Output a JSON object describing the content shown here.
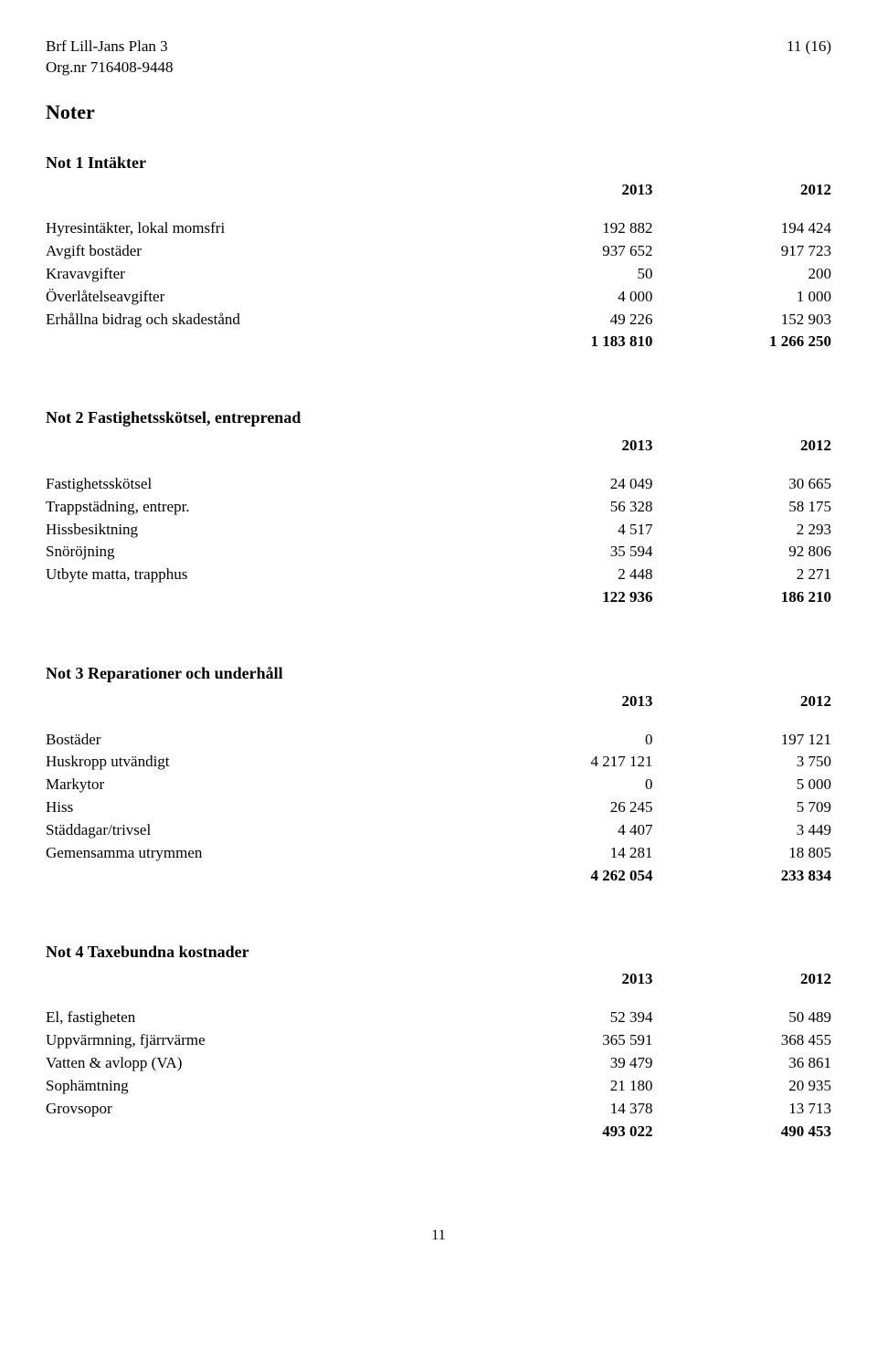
{
  "header": {
    "org_name": "Brf Lill-Jans Plan 3",
    "page_num": "11 (16)",
    "org_nr": "Org.nr 716408-9448"
  },
  "noter_title": "Noter",
  "sections": [
    {
      "title": "Not 1 Intäkter",
      "years": [
        "2013",
        "2012"
      ],
      "rows": [
        {
          "label": "Hyresintäkter, lokal momsfri",
          "c1": "192 882",
          "c2": "194 424"
        },
        {
          "label": "Avgift bostäder",
          "c1": "937 652",
          "c2": "917 723"
        },
        {
          "label": "Kravavgifter",
          "c1": "50",
          "c2": "200"
        },
        {
          "label": "Överlåtelseavgifter",
          "c1": "4 000",
          "c2": "1 000"
        },
        {
          "label": "Erhållna bidrag och skadestånd",
          "c1": "49 226",
          "c2": "152 903"
        }
      ],
      "total": {
        "label": "",
        "c1": "1 183 810",
        "c2": "1 266 250"
      }
    },
    {
      "title": "Not 2 Fastighetsskötsel, entreprenad",
      "years": [
        "2013",
        "2012"
      ],
      "rows": [
        {
          "label": "Fastighetsskötsel",
          "c1": "24 049",
          "c2": "30 665"
        },
        {
          "label": "Trappstädning, entrepr.",
          "c1": "56 328",
          "c2": "58 175"
        },
        {
          "label": "Hissbesiktning",
          "c1": "4 517",
          "c2": "2 293"
        },
        {
          "label": "Snöröjning",
          "c1": "35 594",
          "c2": "92 806"
        },
        {
          "label": "Utbyte matta, trapphus",
          "c1": "2 448",
          "c2": "2 271"
        }
      ],
      "total": {
        "label": "",
        "c1": "122 936",
        "c2": "186 210"
      }
    },
    {
      "title": "Not 3 Reparationer och underhåll",
      "years": [
        "2013",
        "2012"
      ],
      "rows": [
        {
          "label": "Bostäder",
          "c1": "0",
          "c2": "197 121"
        },
        {
          "label": "Huskropp utvändigt",
          "c1": "4 217 121",
          "c2": "3 750"
        },
        {
          "label": "Markytor",
          "c1": "0",
          "c2": "5 000"
        },
        {
          "label": "Hiss",
          "c1": "26 245",
          "c2": "5 709"
        },
        {
          "label": "Städdagar/trivsel",
          "c1": "4 407",
          "c2": "3 449"
        },
        {
          "label": "Gemensamma utrymmen",
          "c1": "14 281",
          "c2": "18 805"
        }
      ],
      "total": {
        "label": "",
        "c1": "4 262 054",
        "c2": "233 834"
      }
    },
    {
      "title": "Not 4 Taxebundna kostnader",
      "years": [
        "2013",
        "2012"
      ],
      "rows": [
        {
          "label": "El, fastigheten",
          "c1": "52 394",
          "c2": "50 489"
        },
        {
          "label": "Uppvärmning, fjärrvärme",
          "c1": "365 591",
          "c2": "368 455"
        },
        {
          "label": "Vatten & avlopp (VA)",
          "c1": "39 479",
          "c2": "36 861"
        },
        {
          "label": "Sophämtning",
          "c1": "21 180",
          "c2": "20 935"
        },
        {
          "label": "Grovsopor",
          "c1": "14 378",
          "c2": "13 713"
        }
      ],
      "total": {
        "label": "",
        "c1": "493 022",
        "c2": "490 453"
      }
    }
  ],
  "footer_page": "11"
}
